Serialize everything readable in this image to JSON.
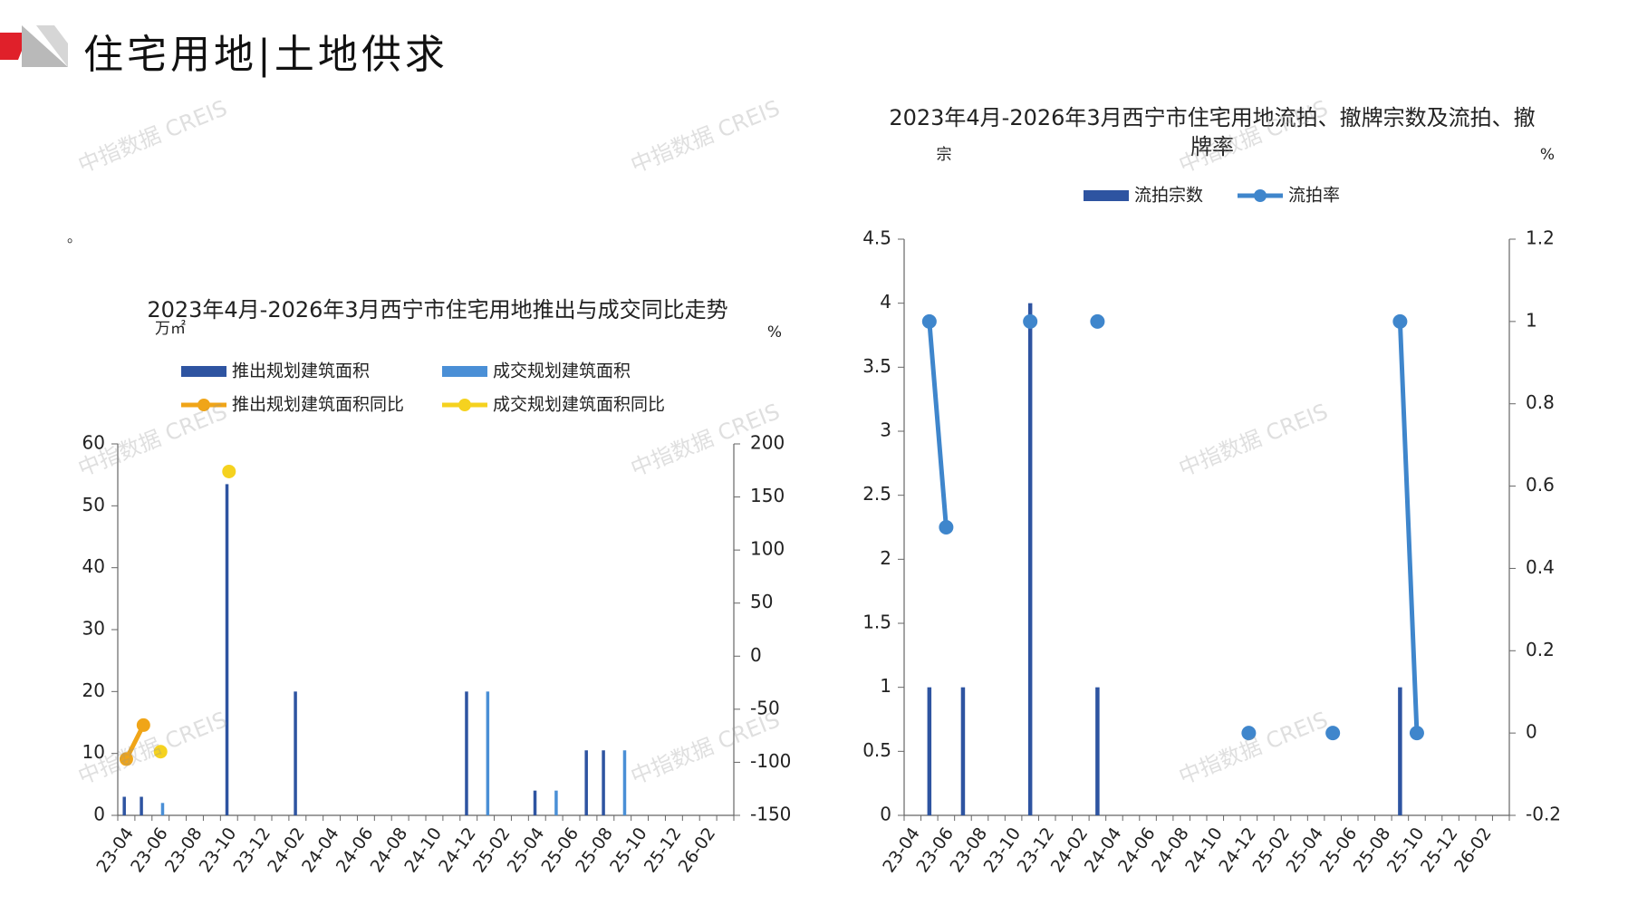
{
  "page": {
    "title": "住宅用地|土地供求",
    "stray_mark": "。",
    "watermark": "中指数据 CREIS"
  },
  "colors": {
    "brand_red": "#e0202a",
    "brand_gray": "#b9b9b9",
    "bar_dark_blue": "#2e54a1",
    "bar_light_blue": "#4a8fd6",
    "line_orange": "#f0a518",
    "line_yellow": "#f5d21f",
    "line_blue": "#3f86cc"
  },
  "chart_data": [
    {
      "type": "bar+line",
      "title": "2023年4月-2026年3月西宁市住宅用地推出与成交同比走势",
      "y_left_unit": "万㎡",
      "y_right_unit": "%",
      "legend": [
        "推出规划建筑面积",
        "成交规划建筑面积",
        "推出规划建筑面积同比",
        "成交规划建筑面积同比"
      ],
      "x_tick_labels": [
        "23-04",
        "23-06",
        "23-08",
        "23-10",
        "23-12",
        "24-02",
        "24-04",
        "24-06",
        "24-08",
        "24-10",
        "24-12",
        "25-02",
        "25-04",
        "25-06",
        "25-08",
        "25-10",
        "25-12",
        "26-02"
      ],
      "months": [
        "23-04",
        "23-05",
        "23-06",
        "23-07",
        "23-08",
        "23-09",
        "23-10",
        "23-11",
        "23-12",
        "24-01",
        "24-02",
        "24-03",
        "24-04",
        "24-05",
        "24-06",
        "24-07",
        "24-08",
        "24-09",
        "24-10",
        "24-11",
        "24-12",
        "25-01",
        "25-02",
        "25-03",
        "25-04",
        "25-05",
        "25-06",
        "25-07",
        "25-08",
        "25-09",
        "25-10",
        "25-11",
        "25-12",
        "26-01",
        "26-02",
        "26-03"
      ],
      "y_left_ticks": [
        0,
        10,
        20,
        30,
        40,
        50,
        60
      ],
      "y_left_lim": [
        0,
        60
      ],
      "y_right_ticks": [
        -150,
        -100,
        -50,
        0,
        50,
        100,
        150,
        200
      ],
      "y_right_lim": [
        -150,
        200
      ],
      "series": [
        {
          "name": "推出规划建筑面积",
          "kind": "bar",
          "axis": "left",
          "values": [
            3,
            3,
            0,
            0,
            0,
            0,
            53.5,
            0,
            0,
            0,
            20,
            0,
            0,
            0,
            0,
            0,
            0,
            0,
            0,
            0,
            20,
            0,
            0,
            0,
            4,
            0,
            0,
            10.5,
            10.5,
            0,
            0,
            0,
            0,
            0,
            0,
            0
          ]
        },
        {
          "name": "成交规划建筑面积",
          "kind": "bar",
          "axis": "left",
          "values": [
            0,
            0,
            2,
            0,
            0,
            0,
            0,
            0,
            0,
            0,
            0,
            0,
            0,
            0,
            0,
            0,
            0,
            0,
            0,
            0,
            0,
            20,
            0,
            0,
            0,
            4,
            0,
            0,
            0,
            10.5,
            0,
            0,
            0,
            0,
            0,
            0
          ]
        },
        {
          "name": "推出规划建筑面积同比",
          "kind": "line",
          "axis": "right",
          "values": [
            -97,
            -65,
            null,
            null,
            null,
            null,
            null,
            null,
            null,
            null,
            null,
            null,
            null,
            null,
            null,
            null,
            null,
            null,
            null,
            null,
            null,
            null,
            null,
            null,
            null,
            null,
            null,
            null,
            null,
            null,
            null,
            null,
            null,
            null,
            null,
            null
          ]
        },
        {
          "name": "成交规划建筑面积同比",
          "kind": "line",
          "axis": "right",
          "values": [
            null,
            null,
            -90,
            null,
            null,
            null,
            174,
            null,
            null,
            null,
            null,
            null,
            null,
            null,
            null,
            null,
            null,
            null,
            null,
            null,
            null,
            null,
            null,
            null,
            null,
            null,
            null,
            null,
            null,
            null,
            null,
            null,
            null,
            null,
            null,
            null
          ]
        }
      ]
    },
    {
      "type": "bar+line",
      "title": "2023年4月-2026年3月西宁市住宅用地流拍、撤牌宗数及流拍、撤牌率",
      "y_left_unit": "宗",
      "y_right_unit": "%",
      "legend": [
        "流拍宗数",
        "流拍率"
      ],
      "x_tick_labels": [
        "23-04",
        "23-06",
        "23-08",
        "23-10",
        "23-12",
        "24-02",
        "24-04",
        "24-06",
        "24-08",
        "24-10",
        "24-12",
        "25-02",
        "25-04",
        "25-06",
        "25-08",
        "25-10",
        "25-12",
        "26-02"
      ],
      "months": [
        "23-04",
        "23-05",
        "23-06",
        "23-07",
        "23-08",
        "23-09",
        "23-10",
        "23-11",
        "23-12",
        "24-01",
        "24-02",
        "24-03",
        "24-04",
        "24-05",
        "24-06",
        "24-07",
        "24-08",
        "24-09",
        "24-10",
        "24-11",
        "24-12",
        "25-01",
        "25-02",
        "25-03",
        "25-04",
        "25-05",
        "25-06",
        "25-07",
        "25-08",
        "25-09",
        "25-10",
        "25-11",
        "25-12",
        "26-01",
        "26-02",
        "26-03"
      ],
      "y_left_ticks": [
        "0",
        "0.5",
        "1",
        "1.5",
        "2",
        "2.5",
        "3",
        "3.5",
        "4",
        "4.5"
      ],
      "y_left_lim": [
        0,
        4.5
      ],
      "y_right_ticks": [
        "-0.2",
        "0",
        "0.2",
        "0.4",
        "0.6",
        "0.8",
        "1",
        "1.2"
      ],
      "y_right_lim": [
        -0.2,
        1.2
      ],
      "series": [
        {
          "name": "流拍宗数",
          "kind": "bar",
          "axis": "left",
          "values": [
            0,
            1,
            0,
            1,
            0,
            0,
            0,
            4,
            0,
            0,
            0,
            1,
            0,
            0,
            0,
            0,
            0,
            0,
            0,
            0,
            0,
            0,
            0,
            0,
            0,
            0,
            0,
            0,
            0,
            1,
            0,
            0,
            0,
            0,
            0,
            0
          ]
        },
        {
          "name": "流拍率",
          "kind": "line",
          "axis": "right",
          "values": [
            null,
            1,
            0.5,
            null,
            null,
            null,
            null,
            1,
            null,
            null,
            null,
            1,
            null,
            null,
            null,
            null,
            null,
            null,
            null,
            null,
            0,
            null,
            null,
            null,
            null,
            0,
            null,
            null,
            null,
            1,
            0,
            null,
            null,
            null,
            null,
            null
          ]
        }
      ]
    }
  ]
}
